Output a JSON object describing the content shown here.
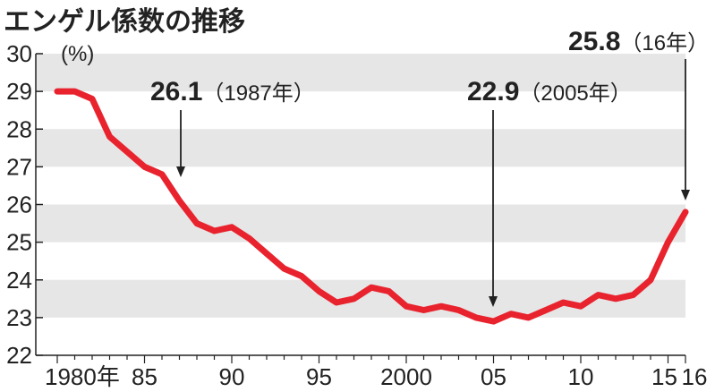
{
  "chart_data": {
    "type": "line",
    "title": "エンゲル係数の推移",
    "ylabel": "(%)",
    "ylim": [
      22,
      30
    ],
    "yticks": [
      "22",
      "23",
      "24",
      "25",
      "26",
      "27",
      "28",
      "29",
      "30"
    ],
    "xlim": [
      1980,
      2016
    ],
    "xticks": [
      {
        "value": 1980,
        "label": "1980年"
      },
      {
        "value": 1985,
        "label": "85"
      },
      {
        "value": 1990,
        "label": "90"
      },
      {
        "value": 1995,
        "label": "95"
      },
      {
        "value": 2000,
        "label": "2000"
      },
      {
        "value": 2005,
        "label": "05"
      },
      {
        "value": 2010,
        "label": "10"
      },
      {
        "value": 2015,
        "label": "15"
      },
      {
        "value": 2016,
        "label": "16"
      }
    ],
    "grid": "alternating horizontal bands",
    "line_color": "#e8232e",
    "band_color": "#e6e6e6",
    "series": [
      {
        "x": [
          1980,
          1981,
          1982,
          1983,
          1984,
          1985,
          1986,
          1987,
          1988,
          1989,
          1990,
          1991,
          1992,
          1993,
          1994,
          1995,
          1996,
          1997,
          1998,
          1999,
          2000,
          2001,
          2002,
          2003,
          2004,
          2005,
          2006,
          2007,
          2008,
          2009,
          2010,
          2011,
          2012,
          2013,
          2014,
          2015,
          2016
        ],
        "values": [
          29.0,
          29.0,
          28.8,
          27.8,
          27.4,
          27.0,
          26.8,
          26.1,
          25.5,
          25.3,
          25.4,
          25.1,
          24.7,
          24.3,
          24.1,
          23.7,
          23.4,
          23.5,
          23.8,
          23.7,
          23.3,
          23.2,
          23.3,
          23.2,
          23.0,
          22.9,
          23.1,
          23.0,
          23.2,
          23.4,
          23.3,
          23.6,
          23.5,
          23.6,
          24.0,
          25.0,
          25.8
        ]
      }
    ],
    "annotations": [
      {
        "x": 1987,
        "y": 26.1,
        "value": "26.1",
        "note": "（1987年）"
      },
      {
        "x": 2005,
        "y": 22.9,
        "value": "22.9",
        "note": "（2005年）"
      },
      {
        "x": 2016,
        "y": 25.8,
        "value": "25.8",
        "note": "（16年）"
      }
    ]
  }
}
